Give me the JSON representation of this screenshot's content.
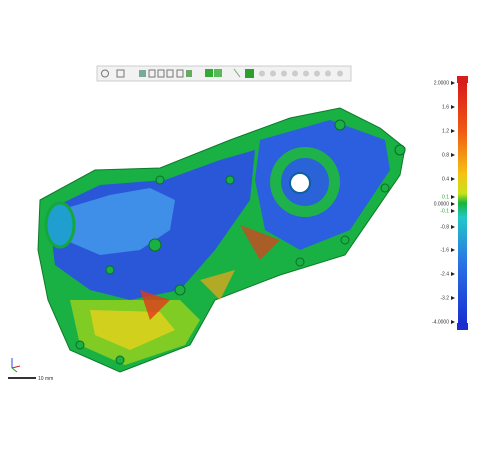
{
  "colorbar": {
    "labels": [
      {
        "text": "2.0000",
        "color": "#333333"
      },
      {
        "text": "1.6",
        "color": "#333333"
      },
      {
        "text": "1.2",
        "color": "#333333"
      },
      {
        "text": "0.8",
        "color": "#333333"
      },
      {
        "text": "0.4",
        "color": "#333333"
      },
      {
        "text": "0.1",
        "color": "#22aa22"
      },
      {
        "text": "0.0000",
        "color": "#333333"
      },
      {
        "text": "-0.1",
        "color": "#22aa22"
      },
      {
        "text": "-0.8",
        "color": "#333333"
      },
      {
        "text": "-1.6",
        "color": "#333333"
      },
      {
        "text": "-2.4",
        "color": "#333333"
      },
      {
        "text": "-3.2",
        "color": "#333333"
      },
      {
        "text": "-4.0000",
        "color": "#333333"
      }
    ]
  },
  "scale_bar": {
    "label": "10 mm"
  }
}
